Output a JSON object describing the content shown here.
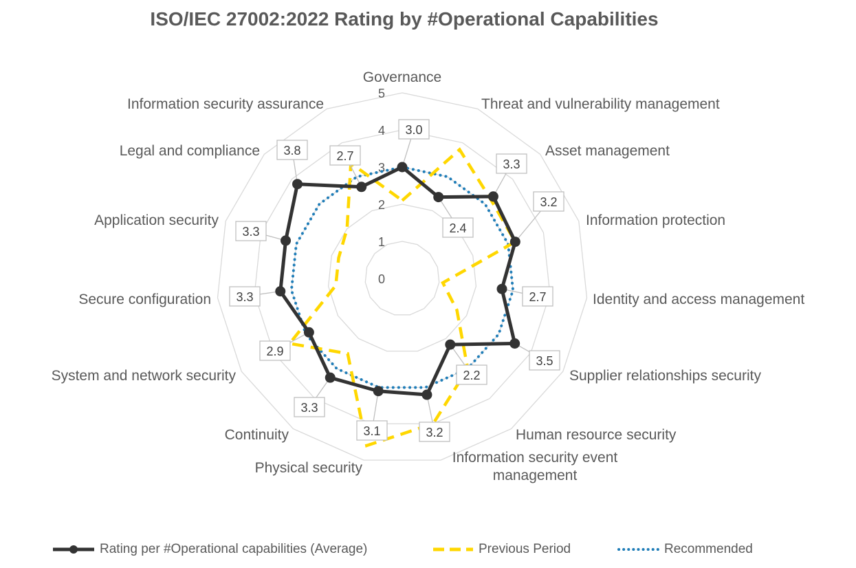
{
  "chart_data": {
    "type": "radar",
    "title": "ISO/IEC 27002:2022 Rating by #Operational Capabilities",
    "categories": [
      "Governance",
      "Threat and vulnerability management",
      "Asset management",
      "Information protection",
      "Identity and access management",
      "Supplier relationships security",
      "Human resource security",
      "Information security event management",
      "Physical security",
      "Continuity",
      "System and network security",
      "Secure configuration",
      "Application security",
      "Legal and compliance",
      "Information security assurance"
    ],
    "radial_ticks": [
      "0",
      "1",
      "2",
      "3",
      "4",
      "5"
    ],
    "rlim": [
      0,
      5
    ],
    "grid": true,
    "legend_position": "bottom",
    "series": [
      {
        "name": "Rating per #Operational capabilities (Average)",
        "color": "#333333",
        "style": "solid-markers",
        "values": [
          3.0,
          2.4,
          3.3,
          3.2,
          2.7,
          3.5,
          2.2,
          3.2,
          3.1,
          3.3,
          2.9,
          3.3,
          3.3,
          3.8,
          2.7
        ],
        "data_labels": [
          "3.0",
          "2.4",
          "3.3",
          "3.2",
          "2.7",
          "3.5",
          "2.2",
          "3.2",
          "3.1",
          "3.3",
          "2.9",
          "3.3",
          "3.3",
          "3.8",
          "2.7"
        ]
      },
      {
        "name": "Previous Period",
        "color": "#FFD700",
        "style": "dashed",
        "values": [
          2.1,
          3.8,
          3.2,
          3.2,
          1.1,
          1.7,
          3.0,
          4.0,
          4.6,
          2.5,
          3.5,
          1.8,
          1.8,
          2.0,
          3.4
        ]
      },
      {
        "name": "Recommended",
        "color": "#1F7DB8",
        "style": "dotted",
        "values": [
          3.0,
          3.0,
          3.0,
          3.0,
          3.0,
          3.0,
          3.0,
          3.0,
          3.0,
          3.0,
          3.0,
          3.0,
          3.0,
          3.0,
          3.0
        ]
      }
    ]
  }
}
